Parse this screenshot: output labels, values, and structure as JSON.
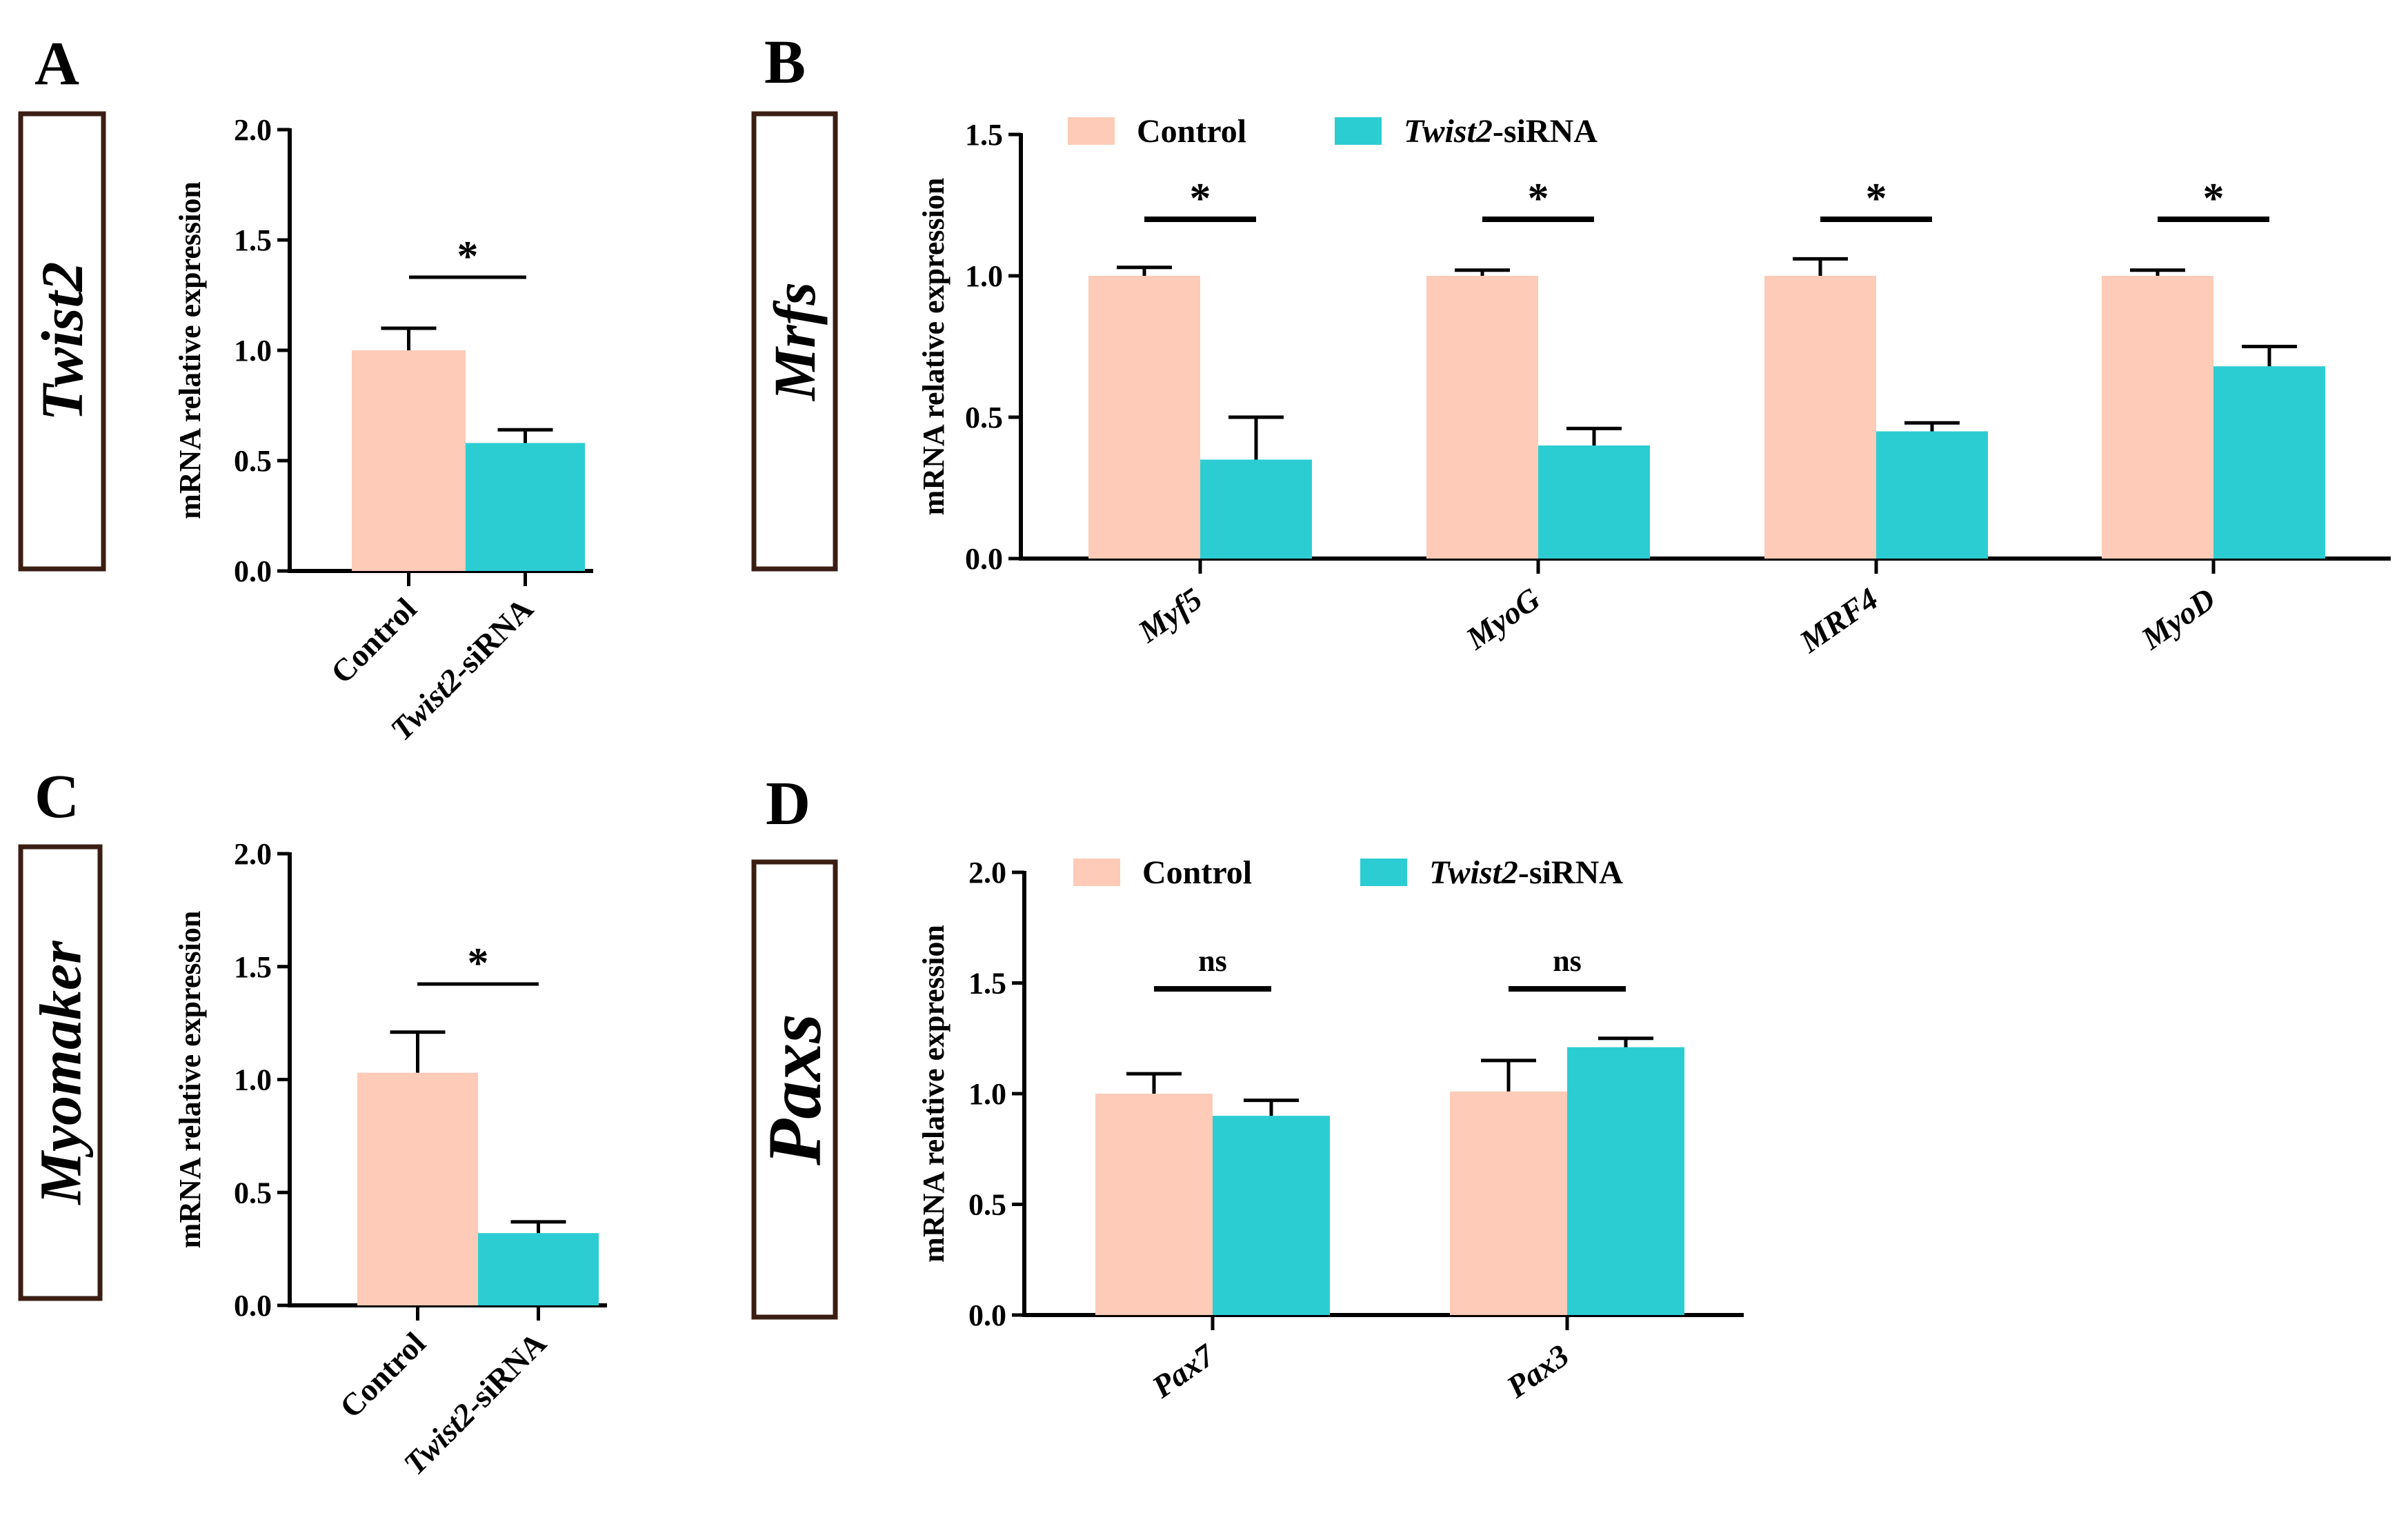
{
  "colors": {
    "control": "#FDCBB7",
    "sirna": "#2CCDD2",
    "axis": "#000000",
    "box_border": "#3B1E13"
  },
  "legend": {
    "control_label": "Control",
    "sirna_italic": "Twist2",
    "sirna_suffix": "-siRNA"
  },
  "chart_data": [
    {
      "panel": "A",
      "type": "bar",
      "box_label": "Twist2",
      "ylabel": "mRNA relative expression",
      "ylim": [
        0,
        2.0
      ],
      "yticks": [
        "0.0",
        "0.5",
        "1.0",
        "1.5",
        "2.0"
      ],
      "categories": [
        {
          "italic": "",
          "plain": "Control"
        },
        {
          "italic": "Twist2",
          "plain": "-siRNA"
        }
      ],
      "values": [
        1.0,
        0.58
      ],
      "errors": [
        0.1,
        0.06
      ],
      "significance": [
        "*"
      ]
    },
    {
      "panel": "B",
      "type": "bar",
      "box_label": "Mrfs",
      "ylabel": "mRNA relative expression",
      "ylim": [
        0,
        1.5
      ],
      "yticks": [
        "0.0",
        "0.5",
        "1.0",
        "1.5"
      ],
      "legend_position": "top-left",
      "categories": [
        "Myf5",
        "MyoG",
        "MRF4",
        "MyoD"
      ],
      "series": [
        {
          "name": "Control",
          "values": [
            1.0,
            1.0,
            1.0,
            1.0
          ],
          "errors": [
            0.03,
            0.02,
            0.06,
            0.02
          ]
        },
        {
          "name": "Twist2-siRNA",
          "values": [
            0.35,
            0.4,
            0.45,
            0.68
          ],
          "errors": [
            0.15,
            0.06,
            0.03,
            0.07
          ]
        }
      ],
      "significance": [
        "*",
        "*",
        "*",
        "*"
      ]
    },
    {
      "panel": "C",
      "type": "bar",
      "box_label": "Myomaker",
      "ylabel": "mRNA relative expression",
      "ylim": [
        0,
        2.0
      ],
      "yticks": [
        "0.0",
        "0.5",
        "1.0",
        "1.5",
        "2.0"
      ],
      "categories": [
        {
          "italic": "",
          "plain": "Control"
        },
        {
          "italic": "Twist2",
          "plain": "-siRNA"
        }
      ],
      "values": [
        1.03,
        0.32
      ],
      "errors": [
        0.18,
        0.05
      ],
      "significance": [
        "*"
      ]
    },
    {
      "panel": "D",
      "type": "bar",
      "box_label": "Paxs",
      "ylabel": "mRNA relative expression",
      "ylim": [
        0,
        2.0
      ],
      "yticks": [
        "0.0",
        "0.5",
        "1.0",
        "1.5",
        "2.0"
      ],
      "legend_position": "top-left",
      "categories": [
        "Pax7",
        "Pax3"
      ],
      "series": [
        {
          "name": "Control",
          "values": [
            1.0,
            1.01
          ],
          "errors": [
            0.09,
            0.14
          ]
        },
        {
          "name": "Twist2-siRNA",
          "values": [
            0.9,
            1.21
          ],
          "errors": [
            0.07,
            0.04
          ]
        }
      ],
      "significance": [
        "ns",
        "ns"
      ]
    }
  ]
}
